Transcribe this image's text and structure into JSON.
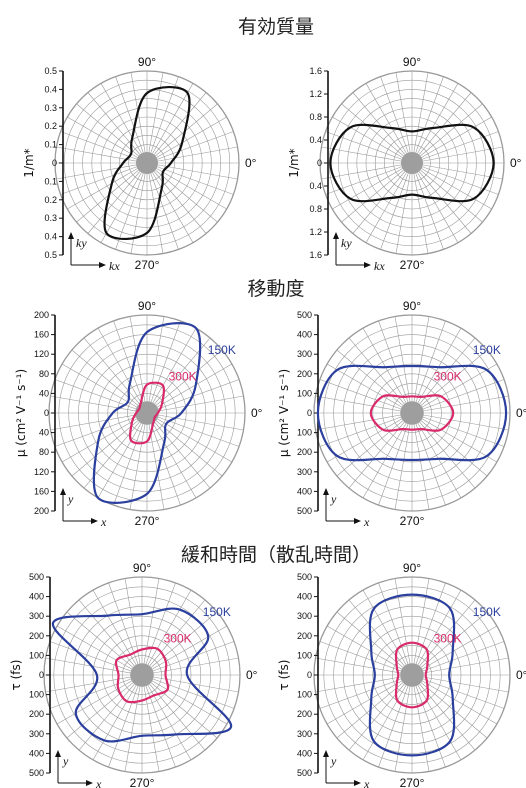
{
  "sections": [
    "有効質量",
    "移動度",
    "緩和時間（散乱時間）"
  ],
  "colors": {
    "c150": "#2b3f9e",
    "c300": "#d92a6b",
    "grid": "#9a9a9a",
    "curve": "#111111"
  },
  "angle_labels": {
    "a90": "90°",
    "a0": "0°",
    "a270": "270°"
  },
  "chart_data": [
    {
      "type": "polar-line",
      "section": "有効質量",
      "panel": "left",
      "ylabel": "1/m*",
      "ticks": [
        "0.5",
        "0.4",
        "0.3",
        "0.2",
        "0.1",
        "0",
        "0.1",
        "0.2",
        "0.3",
        "0.4",
        "0.5"
      ],
      "rmax": 0.5,
      "axis_x": "kx",
      "axis_y": "ky",
      "legend": "",
      "series": [
        {
          "name": "",
          "color": "#111111",
          "theta_deg": [
            0,
            30,
            60,
            90,
            120,
            150,
            180,
            210,
            240,
            270,
            300,
            330
          ],
          "r": [
            0.13,
            0.22,
            0.44,
            0.38,
            0.16,
            0.1,
            0.13,
            0.22,
            0.44,
            0.38,
            0.16,
            0.1
          ]
        }
      ]
    },
    {
      "type": "polar-line",
      "section": "有効質量",
      "panel": "right",
      "ylabel": "1/m*",
      "ticks": [
        "1.6",
        "1.2",
        "0.8",
        "0.4",
        "0",
        "0.4",
        "0.8",
        "1.2",
        "1.6"
      ],
      "rmax": 1.6,
      "axis_x": "kx",
      "axis_y": "ky",
      "legend": "",
      "series": [
        {
          "name": "",
          "color": "#111111",
          "theta_deg": [
            0,
            30,
            60,
            90,
            120,
            150,
            180,
            210,
            240,
            270,
            300,
            330
          ],
          "r": [
            1.42,
            1.24,
            0.7,
            0.55,
            0.7,
            1.24,
            1.42,
            1.24,
            0.7,
            0.55,
            0.7,
            1.24
          ]
        }
      ]
    },
    {
      "type": "polar-line",
      "section": "移動度",
      "panel": "left",
      "ylabel": "μ (cm² V⁻¹ s⁻¹)",
      "ticks": [
        "200",
        "160",
        "120",
        "80",
        "40",
        "0",
        "40",
        "80",
        "120",
        "160",
        "200"
      ],
      "rmax": 200,
      "axis_x": "x",
      "axis_y": "y",
      "legend": "",
      "series": [
        {
          "name": "150K",
          "color": "#2b3f9e",
          "theta_deg": [
            0,
            30,
            60,
            90,
            120,
            150,
            180,
            210,
            240,
            270,
            300,
            330
          ],
          "r": [
            70,
            115,
            200,
            165,
            70,
            45,
            70,
            115,
            200,
            165,
            70,
            45
          ]
        },
        {
          "name": "300K",
          "color": "#d92a6b",
          "theta_deg": [
            0,
            30,
            60,
            90,
            120,
            150,
            180,
            210,
            240,
            270,
            300,
            330
          ],
          "r": [
            22,
            35,
            65,
            58,
            25,
            18,
            22,
            35,
            65,
            58,
            25,
            18
          ]
        }
      ]
    },
    {
      "type": "polar-line",
      "section": "移動度",
      "panel": "right",
      "ylabel": "μ (cm² V⁻¹ s⁻¹)",
      "ticks": [
        "500",
        "400",
        "300",
        "200",
        "100",
        "0",
        "100",
        "200",
        "300",
        "400",
        "500"
      ],
      "rmax": 500,
      "axis_x": "x",
      "axis_y": "y",
      "legend": "",
      "series": [
        {
          "name": "150K",
          "color": "#2b3f9e",
          "theta_deg": [
            0,
            30,
            60,
            90,
            120,
            150,
            180,
            210,
            240,
            270,
            300,
            330
          ],
          "r": [
            480,
            440,
            270,
            240,
            270,
            440,
            480,
            440,
            270,
            240,
            270,
            440
          ]
        },
        {
          "name": "300K",
          "color": "#d92a6b",
          "theta_deg": [
            0,
            30,
            60,
            90,
            120,
            150,
            180,
            210,
            240,
            270,
            300,
            330
          ],
          "r": [
            210,
            170,
            95,
            85,
            95,
            170,
            210,
            170,
            95,
            85,
            95,
            170
          ]
        }
      ]
    },
    {
      "type": "polar-line",
      "section": "緩和時間（散乱時間）",
      "panel": "left",
      "ylabel": "τ (fs)",
      "ticks": [
        "500",
        "400",
        "300",
        "200",
        "100",
        "0",
        "100",
        "200",
        "300",
        "400",
        "500"
      ],
      "rmax": 500,
      "axis_x": "x",
      "axis_y": "y",
      "legend": "",
      "series": [
        {
          "name": "150K",
          "color": "#2b3f9e",
          "theta_deg": [
            0,
            30,
            60,
            90,
            120,
            150,
            180,
            210,
            240,
            270,
            300,
            330
          ],
          "r": [
            230,
            390,
            385,
            310,
            350,
            525,
            230,
            390,
            385,
            310,
            350,
            525
          ]
        },
        {
          "name": "300K",
          "color": "#d92a6b",
          "theta_deg": [
            0,
            30,
            60,
            90,
            120,
            150,
            180,
            210,
            240,
            270,
            300,
            330
          ],
          "r": [
            120,
            140,
            155,
            130,
            120,
            150,
            120,
            140,
            155,
            130,
            120,
            150
          ]
        }
      ]
    },
    {
      "type": "polar-line",
      "section": "緩和時間（散乱時間）",
      "panel": "right",
      "ylabel": "τ (fs)",
      "ticks": [
        "500",
        "400",
        "300",
        "200",
        "100",
        "0",
        "100",
        "200",
        "300",
        "400",
        "500"
      ],
      "rmax": 500,
      "axis_x": "x",
      "axis_y": "y",
      "legend": "",
      "series": [
        {
          "name": "150K",
          "color": "#2b3f9e",
          "theta_deg": [
            0,
            30,
            60,
            90,
            120,
            150,
            180,
            210,
            240,
            270,
            300,
            330
          ],
          "r": [
            190,
            240,
            390,
            410,
            390,
            240,
            190,
            240,
            390,
            410,
            390,
            240
          ]
        },
        {
          "name": "300K",
          "color": "#d92a6b",
          "theta_deg": [
            0,
            30,
            60,
            90,
            120,
            150,
            180,
            210,
            240,
            270,
            300,
            330
          ],
          "r": [
            70,
            90,
            150,
            165,
            150,
            90,
            70,
            90,
            150,
            165,
            150,
            90
          ]
        }
      ]
    }
  ]
}
